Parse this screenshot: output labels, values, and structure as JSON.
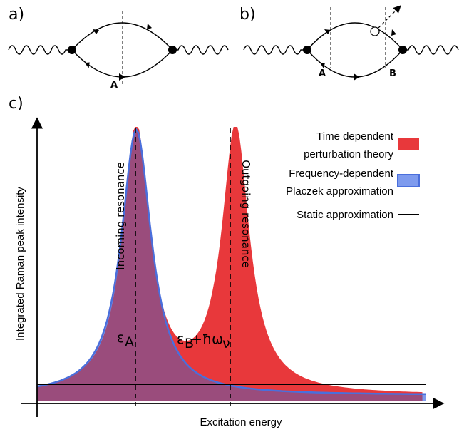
{
  "panels": {
    "a": "a)",
    "b": "b)",
    "c": "c)"
  },
  "diagram_a": {
    "cut_label": "A"
  },
  "diagram_b": {
    "cut_label_left": "A",
    "cut_label_right": "B"
  },
  "chart_data": {
    "type": "area",
    "xlabel": "Excitation energy",
    "ylabel": "Integrated Raman peak intensity",
    "legend": [
      {
        "line1": "Time dependent",
        "line2": "perturbation theory",
        "color": "#e8383b"
      },
      {
        "line1": "Frequency-dependent",
        "line2": "Placzek approximation",
        "color": "#6b8ee8"
      },
      {
        "line1": "Static approximation",
        "color": "#000000"
      }
    ],
    "annotations": {
      "incoming": "Incoming resonance",
      "outgoing": "Outgoing resonance",
      "eps_a": "ε",
      "eps_a_sub": "A",
      "eps_b": "ε",
      "eps_b_sub": "B",
      "eps_b_rest": "+ħω",
      "eps_b_nu": "ν"
    },
    "series": [
      {
        "name": "Time dependent perturbation theory",
        "peaks": [
          0.255,
          0.51
        ],
        "width": 0.048
      },
      {
        "name": "Frequency-dependent Placzek approximation",
        "peaks": [
          0.255
        ],
        "width": 0.05
      },
      {
        "name": "Static approximation",
        "level": 0.075
      }
    ]
  },
  "colors": {
    "red": "#e8383b",
    "blue": "#5b7fe6",
    "blue_fill": "#7e9bee",
    "purple": "#9a4c7c"
  }
}
